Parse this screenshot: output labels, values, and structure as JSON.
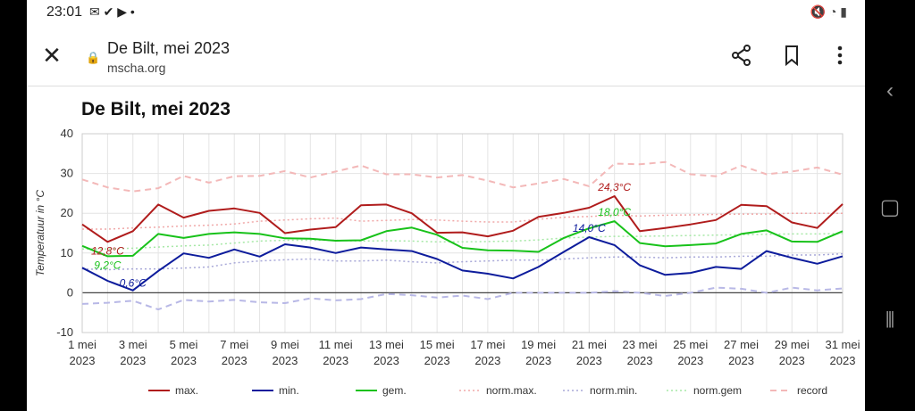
{
  "status": {
    "time": "23:01",
    "left_icons": "✉ ✔ ▶ •",
    "right_icons": "🔇 ◔ ▮"
  },
  "browser": {
    "title": "De Bilt, mei 2023",
    "url": "mscha.org"
  },
  "chart_data": {
    "type": "line",
    "title": "De Bilt, mei 2023",
    "ylabel": "Temperatuur in °C",
    "ylim": [
      -10,
      40
    ],
    "yticks": [
      -10,
      0,
      10,
      20,
      30,
      40
    ],
    "xtick_labels": [
      {
        "day": 1,
        "l1": "1 mei",
        "l2": "2023"
      },
      {
        "day": 3,
        "l1": "3 mei",
        "l2": "2023"
      },
      {
        "day": 5,
        "l1": "5 mei",
        "l2": "2023"
      },
      {
        "day": 7,
        "l1": "7 mei",
        "l2": "2023"
      },
      {
        "day": 9,
        "l1": "9 mei",
        "l2": "2023"
      },
      {
        "day": 11,
        "l1": "11 mei",
        "l2": "2023"
      },
      {
        "day": 13,
        "l1": "13 mei",
        "l2": "2023"
      },
      {
        "day": 15,
        "l1": "15 mei",
        "l2": "2023"
      },
      {
        "day": 17,
        "l1": "17 mei",
        "l2": "2023"
      },
      {
        "day": 19,
        "l1": "19 mei",
        "l2": "2023"
      },
      {
        "day": 21,
        "l1": "21 mei",
        "l2": "2023"
      },
      {
        "day": 23,
        "l1": "23 mei",
        "l2": "2023"
      },
      {
        "day": 25,
        "l1": "25 mei",
        "l2": "2023"
      },
      {
        "day": 27,
        "l1": "27 mei",
        "l2": "2023"
      },
      {
        "day": 29,
        "l1": "29 mei",
        "l2": "2023"
      },
      {
        "day": 31,
        "l1": "31 mei",
        "l2": "2023"
      }
    ],
    "x": [
      1,
      2,
      3,
      4,
      5,
      6,
      7,
      8,
      9,
      10,
      11,
      12,
      13,
      14,
      15,
      16,
      17,
      18,
      19,
      20,
      21,
      22,
      23,
      24,
      25,
      26,
      27,
      28,
      29,
      30,
      31
    ],
    "grid": true,
    "legend_position": "bottom",
    "series": [
      {
        "name": "max.",
        "color": "#b01c1c",
        "style": "solid",
        "width": 2,
        "values": [
          17.2,
          12.8,
          15.5,
          22.2,
          18.9,
          20.6,
          21.2,
          20.1,
          15.0,
          15.9,
          16.5,
          22.0,
          22.2,
          20.0,
          15.1,
          15.2,
          14.2,
          15.6,
          19.1,
          20.1,
          21.4,
          24.3,
          15.5,
          16.3,
          17.2,
          18.3,
          22.1,
          21.8,
          17.7,
          16.3,
          22.3
        ]
      },
      {
        "name": "min.",
        "color": "#0d1c9c",
        "style": "solid",
        "width": 2,
        "values": [
          6.3,
          3.0,
          0.6,
          5.5,
          9.9,
          8.8,
          10.9,
          9.1,
          12.2,
          11.4,
          10.0,
          11.4,
          10.9,
          10.5,
          8.5,
          5.6,
          4.8,
          3.6,
          6.5,
          10.3,
          14.0,
          12.0,
          6.9,
          4.5,
          5.0,
          6.5,
          6.0,
          10.5,
          8.8,
          7.3,
          9.2
        ]
      },
      {
        "name": "gem.",
        "color": "#18c21a",
        "style": "solid",
        "width": 2,
        "values": [
          11.8,
          9.2,
          9.3,
          14.8,
          13.8,
          14.8,
          15.2,
          14.8,
          13.7,
          13.6,
          13.1,
          13.2,
          15.5,
          16.4,
          14.6,
          11.3,
          10.7,
          10.6,
          10.3,
          13.8,
          16.2,
          18.0,
          12.5,
          11.7,
          12.0,
          12.4,
          14.8,
          15.7,
          12.9,
          12.8,
          15.5
        ]
      },
      {
        "name": "norm.max.",
        "color": "#f0a8a8",
        "style": "dotted",
        "width": 1.5,
        "values": [
          16.0,
          16.0,
          16.3,
          16.5,
          16.8,
          17.0,
          17.3,
          18.0,
          18.3,
          18.6,
          18.8,
          18.0,
          18.2,
          18.4,
          18.3,
          18.0,
          17.8,
          17.8,
          18.5,
          19.0,
          19.2,
          19.5,
          19.3,
          19.5,
          19.6,
          19.7,
          19.8,
          19.8,
          20.0,
          20.0,
          20.0
        ]
      },
      {
        "name": "norm.min.",
        "color": "#a8a8d8",
        "style": "dotted",
        "width": 1.5,
        "values": [
          6.0,
          5.8,
          6.0,
          6.0,
          6.2,
          6.5,
          7.5,
          8.0,
          8.3,
          8.5,
          8.0,
          8.0,
          8.2,
          7.8,
          7.5,
          7.8,
          8.0,
          8.2,
          8.2,
          8.5,
          8.8,
          9.0,
          9.0,
          8.8,
          9.0,
          9.0,
          9.2,
          9.2,
          9.5,
          9.5,
          9.8
        ]
      },
      {
        "name": "norm.gem",
        "color": "#a6e8a6",
        "style": "dotted",
        "width": 1.5,
        "values": [
          11.0,
          11.0,
          11.2,
          11.5,
          11.8,
          12.0,
          12.5,
          13.0,
          13.2,
          13.2,
          13.2,
          13.0,
          13.1,
          13.0,
          12.8,
          12.8,
          12.9,
          13.0,
          13.3,
          13.8,
          14.0,
          14.2,
          14.2,
          14.3,
          14.4,
          14.5,
          14.6,
          14.7,
          14.8,
          14.8,
          14.9
        ]
      },
      {
        "name": "record",
        "color": "#f3b8b8",
        "style": "dashed",
        "width": 2,
        "values": [
          28.5,
          26.5,
          25.5,
          26.3,
          29.4,
          27.7,
          29.3,
          29.4,
          30.6,
          29.0,
          30.5,
          32.0,
          29.8,
          29.8,
          29.0,
          29.6,
          28.2,
          26.5,
          27.5,
          28.6,
          26.8,
          32.5,
          32.3,
          32.9,
          29.8,
          29.3,
          32.0,
          29.8,
          30.5,
          31.5,
          29.7
        ]
      },
      {
        "name": "record",
        "color": "#b8b8e6",
        "style": "dashed",
        "width": 2,
        "values": [
          -2.8,
          -2.5,
          -2.0,
          -4.2,
          -1.8,
          -2.2,
          -1.8,
          -2.4,
          -2.6,
          -1.4,
          -1.9,
          -1.6,
          -0.3,
          -0.6,
          -1.2,
          -0.7,
          -1.6,
          0.0,
          0.0,
          0.0,
          0.0,
          0.4,
          0.0,
          -0.8,
          0.0,
          1.3,
          1.0,
          0.0,
          1.3,
          0.6,
          1.1
        ]
      }
    ],
    "annotations": [
      {
        "text": "12,8°C",
        "day": 2,
        "value": 12.8,
        "color": "#b01c1c"
      },
      {
        "text": "9,2°C",
        "day": 2,
        "value": 9.2,
        "color": "#18c21a"
      },
      {
        "text": "0,6°C",
        "day": 3,
        "value": 0.6,
        "color": "#0d1c9c"
      },
      {
        "text": "24,3°C",
        "day": 22,
        "value": 24.3,
        "color": "#b01c1c"
      },
      {
        "text": "18,0°C",
        "day": 22,
        "value": 18.0,
        "color": "#18c21a"
      },
      {
        "text": "14,0°C",
        "day": 21,
        "value": 14.0,
        "color": "#0d1c9c"
      }
    ]
  }
}
